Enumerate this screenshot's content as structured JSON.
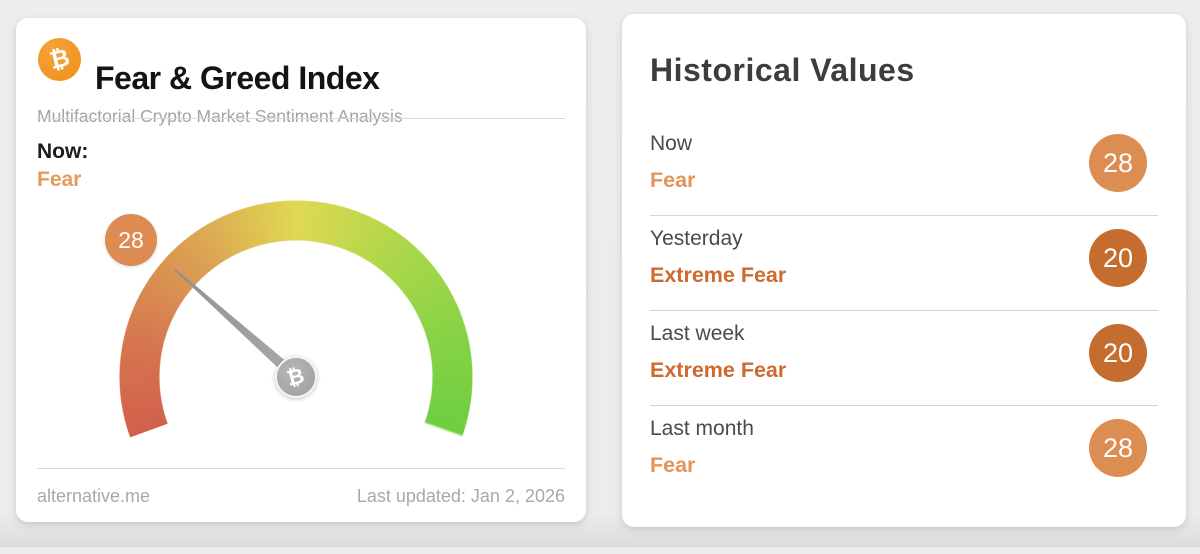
{
  "index_card": {
    "title": "Fear & Greed Index",
    "subtitle": "Multifactorial Crypto Market Sentiment Analysis",
    "now_label": "Now:",
    "now_classification": "Fear",
    "gauge": {
      "value": 28,
      "classification": "Fear"
    },
    "footer": {
      "source": "alternative.me",
      "last_updated": "Last updated: Jan 2, 2026"
    },
    "icons": {
      "bitcoin_symbol": "₿"
    }
  },
  "historical_card": {
    "title": "Historical Values",
    "rows": [
      {
        "label": "Now",
        "classification": "Fear",
        "value": "28",
        "tone": "fear"
      },
      {
        "label": "Yesterday",
        "classification": "Extreme Fear",
        "value": "20",
        "tone": "extreme_fear"
      },
      {
        "label": "Last week",
        "classification": "Extreme Fear",
        "value": "20",
        "tone": "extreme_fear"
      },
      {
        "label": "Last month",
        "classification": "Fear",
        "value": "28",
        "tone": "fear"
      }
    ]
  },
  "colors": {
    "page_background": "#ececec",
    "card_background": "#ffffff",
    "bitcoin_orange": "#ef8e19",
    "fear_text": "#e2945a",
    "fear_badge": "#dc8d52",
    "extreme_fear_text": "#ce6a30",
    "extreme_fear_badge": "#c56c2f",
    "gauge_red": "#d2604b",
    "gauge_orange": "#dba253",
    "gauge_yellow": "#e0d852",
    "gauge_green": "#6ece3f",
    "needle_gray": "#9d9d9d"
  }
}
